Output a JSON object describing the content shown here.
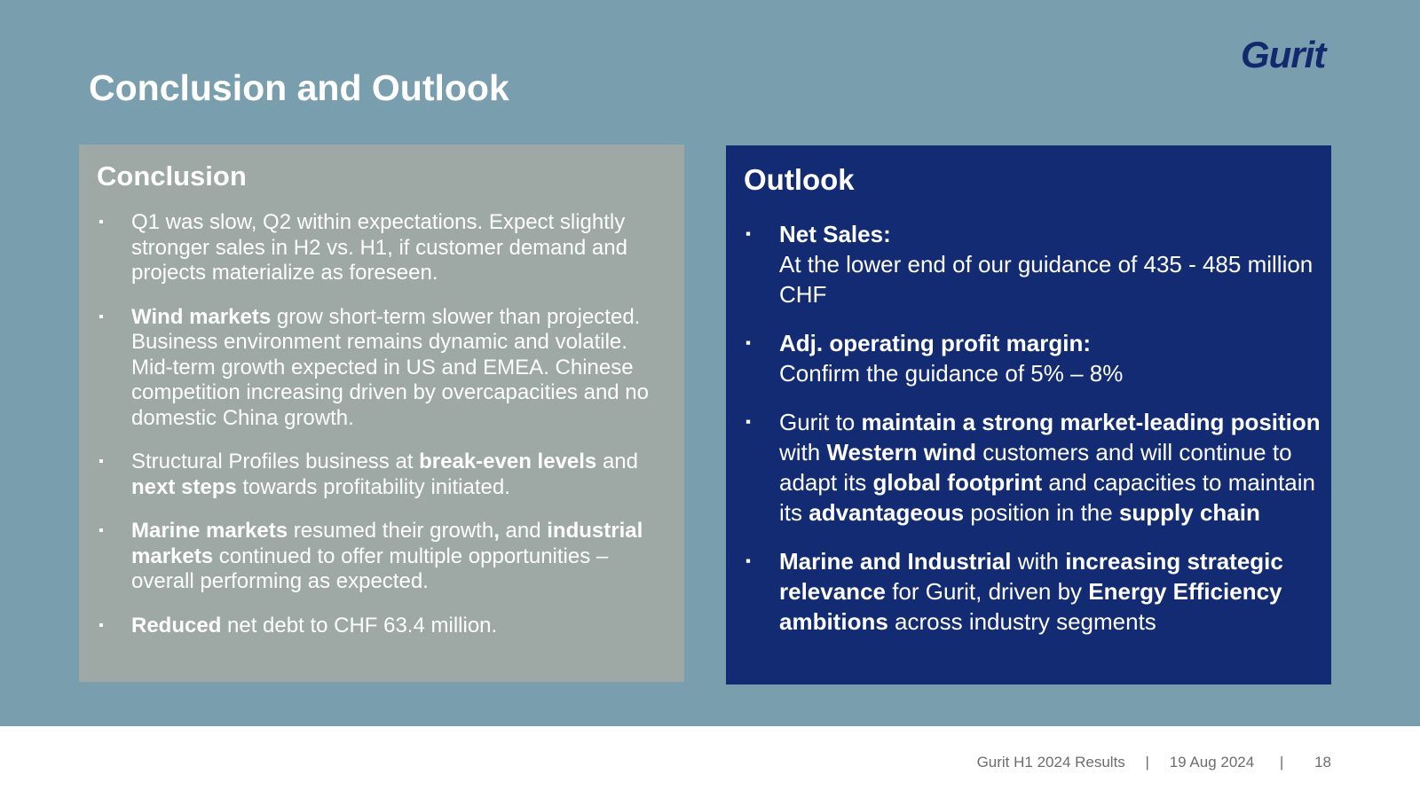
{
  "slide": {
    "title": "Conclusion and Outlook",
    "logo_text": "Gurit"
  },
  "conclusion": {
    "heading": "Conclusion",
    "bullet_glyph": "▪",
    "items": [
      {
        "segments": [
          {
            "t": "Q1 was slow, Q2 within expectations. Expect slightly stronger sales in H2 vs. H1, if customer demand and projects materialize as foreseen.",
            "b": false
          }
        ]
      },
      {
        "segments": [
          {
            "t": "Wind markets",
            "b": true
          },
          {
            "t": " grow short-term slower than projected. Business environment remains dynamic and volatile. Mid-term growth expected in US and EMEA. Chinese competition increasing driven by overcapacities and no domestic China growth.",
            "b": false
          }
        ]
      },
      {
        "segments": [
          {
            "t": "Structural Profiles business at ",
            "b": false
          },
          {
            "t": "break-even levels",
            "b": true
          },
          {
            "t": " and ",
            "b": false
          },
          {
            "t": "next steps",
            "b": true
          },
          {
            "t": " towards profitability initiated.",
            "b": false
          }
        ]
      },
      {
        "segments": [
          {
            "t": "Marine markets",
            "b": true
          },
          {
            "t": " resumed their growth",
            "b": false
          },
          {
            "t": ",",
            "b": true
          },
          {
            "t": " and ",
            "b": false
          },
          {
            "t": "industrial markets",
            "b": true
          },
          {
            "t": " continued to offer multiple opportunities – overall performing as expected.",
            "b": false
          }
        ]
      },
      {
        "segments": [
          {
            "t": "Reduced",
            "b": true
          },
          {
            "t": " net debt to CHF 63.4 million.",
            "b": false
          }
        ]
      }
    ]
  },
  "outlook": {
    "heading": "Outlook",
    "bullet_glyph": "▪",
    "items": [
      {
        "segments": [
          {
            "t": "Net Sales:",
            "b": true,
            "br_after": true
          },
          {
            "t": "At the lower end of our guidance of 435 - 485 million CHF",
            "b": false
          }
        ]
      },
      {
        "segments": [
          {
            "t": "Adj. operating profit margin:",
            "b": true,
            "br_after": true
          },
          {
            "t": "Confirm the guidance of 5% – 8%",
            "b": false
          }
        ]
      },
      {
        "segments": [
          {
            "t": "Gurit to ",
            "b": false
          },
          {
            "t": "maintain a strong market-leading position",
            "b": true
          },
          {
            "t": " with ",
            "b": false
          },
          {
            "t": "Western wind",
            "b": true
          },
          {
            "t": " customers and will continue to adapt its ",
            "b": false
          },
          {
            "t": "global footprint",
            "b": true
          },
          {
            "t": " and capacities to maintain its ",
            "b": false
          },
          {
            "t": "advantageous",
            "b": true
          },
          {
            "t": " position in the ",
            "b": false
          },
          {
            "t": "supply chain",
            "b": true
          }
        ]
      },
      {
        "segments": [
          {
            "t": "Marine and Industrial",
            "b": true
          },
          {
            "t": " with ",
            "b": false
          },
          {
            "t": "increasing strategic relevance",
            "b": true
          },
          {
            "t": " for Gurit, driven by ",
            "b": false
          },
          {
            "t": "Energy Efficiency ambitions",
            "b": true
          },
          {
            "t": " across industry segments",
            "b": false
          }
        ]
      }
    ]
  },
  "footer": {
    "report": "Gurit H1 2024 Results",
    "separator": "|",
    "date": "19 Aug 2024",
    "page_number": "18"
  }
}
